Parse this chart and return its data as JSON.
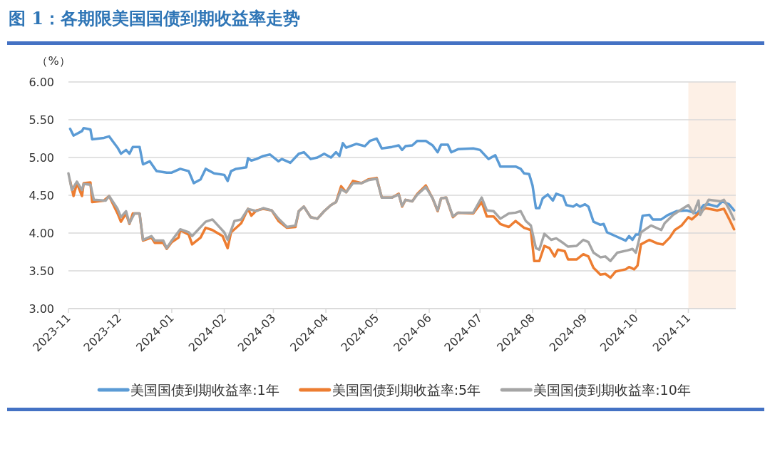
{
  "chart_data": {
    "type": "line",
    "title": "图 1：各期限美国国债到期收益率走势",
    "ylabel": "（%）",
    "xlim": [
      "2023-11-01",
      "2024-11-29"
    ],
    "xticks": [
      "2023-11",
      "2023-12",
      "2024-01",
      "2024-02",
      "2024-03",
      "2024-04",
      "2024-05",
      "2024-06",
      "2024-07",
      "2024-08",
      "2024-09",
      "2024-10",
      "2024-11"
    ],
    "ylim": [
      3,
      6
    ],
    "yticks": [
      {
        "value": 3,
        "label": "3.00"
      },
      {
        "value": 3.5,
        "label": "3.50"
      },
      {
        "value": 4,
        "label": "4.00"
      },
      {
        "value": 4.5,
        "label": "4.50"
      },
      {
        "value": 5,
        "label": "5.00"
      },
      {
        "value": 5.5,
        "label": "5.50"
      },
      {
        "value": 6,
        "label": "6.00"
      }
    ],
    "grid": "y",
    "legend": "bottom",
    "bands": [
      {
        "axis": "x",
        "from": "2024-11-01",
        "to": "2024-11-29",
        "color": "#fdf0e6"
      }
    ],
    "series": [
      {
        "name": "美国国债到期收益率:1年",
        "color": "#5b9bd5",
        "x": [
          "2023-11-02",
          "2023-11-04",
          "2023-11-09",
          "2023-11-10",
          "2023-11-14",
          "2023-11-15",
          "2023-11-22",
          "2023-11-25",
          "2023-11-27",
          "2023-11-30",
          "2023-12-02",
          "2023-12-05",
          "2023-12-07",
          "2023-12-09",
          "2023-12-13",
          "2023-12-15",
          "2023-12-19",
          "2023-12-23",
          "2023-12-29",
          "2024-01-01",
          "2024-01-06",
          "2024-01-11",
          "2024-01-14",
          "2024-01-18",
          "2024-01-21",
          "2024-01-26",
          "2024-02-01",
          "2024-02-03",
          "2024-02-05",
          "2024-02-08",
          "2024-02-14",
          "2024-02-15",
          "2024-02-17",
          "2024-02-20",
          "2024-02-24",
          "2024-02-28",
          "2024-03-04",
          "2024-03-06",
          "2024-03-11",
          "2024-03-16",
          "2024-03-19",
          "2024-03-23",
          "2024-03-27",
          "2024-03-31",
          "2024-04-04",
          "2024-04-07",
          "2024-04-09",
          "2024-04-11",
          "2024-04-13",
          "2024-04-19",
          "2024-04-24",
          "2024-04-27",
          "2024-05-01",
          "2024-05-04",
          "2024-05-10",
          "2024-05-14",
          "2024-05-16",
          "2024-05-18",
          "2024-05-22",
          "2024-05-25",
          "2024-05-30",
          "2024-06-03",
          "2024-06-06",
          "2024-06-08",
          "2024-06-12",
          "2024-06-14",
          "2024-06-18",
          "2024-06-27",
          "2024-07-01",
          "2024-07-06",
          "2024-07-10",
          "2024-07-13",
          "2024-07-19",
          "2024-07-22",
          "2024-07-25",
          "2024-07-27",
          "2024-07-30",
          "2024-08-01",
          "2024-08-03",
          "2024-08-05",
          "2024-08-07",
          "2024-08-10",
          "2024-08-13",
          "2024-08-15",
          "2024-08-19",
          "2024-08-21",
          "2024-08-25",
          "2024-08-27",
          "2024-08-29",
          "2024-09-01",
          "2024-09-03",
          "2024-09-06",
          "2024-09-10",
          "2024-09-12",
          "2024-09-14",
          "2024-09-19",
          "2024-09-25",
          "2024-09-27",
          "2024-09-29",
          "2024-10-01",
          "2024-10-03",
          "2024-10-05",
          "2024-10-09",
          "2024-10-11",
          "2024-10-16",
          "2024-10-20",
          "2024-10-25",
          "2024-10-31",
          "2024-11-06",
          "2024-11-10",
          "2024-11-13",
          "2024-11-18",
          "2024-11-21",
          "2024-11-25",
          "2024-11-28"
        ],
        "values": [
          5.38,
          5.29,
          5.35,
          5.39,
          5.37,
          5.24,
          5.26,
          5.28,
          5.22,
          5.13,
          5.05,
          5.1,
          5.05,
          5.14,
          5.14,
          4.91,
          4.95,
          4.82,
          4.8,
          4.8,
          4.85,
          4.82,
          4.66,
          4.71,
          4.85,
          4.79,
          4.77,
          4.69,
          4.82,
          4.85,
          4.87,
          4.99,
          4.96,
          4.98,
          5.02,
          5.04,
          4.95,
          4.98,
          4.93,
          5.05,
          5.07,
          4.98,
          5.0,
          5.05,
          5.0,
          5.07,
          5.02,
          5.19,
          5.13,
          5.18,
          5.15,
          5.22,
          5.25,
          5.12,
          5.14,
          5.16,
          5.1,
          5.15,
          5.16,
          5.22,
          5.22,
          5.16,
          5.07,
          5.17,
          5.17,
          5.07,
          5.11,
          5.12,
          5.1,
          4.98,
          5.03,
          4.88,
          4.88,
          4.88,
          4.85,
          4.79,
          4.78,
          4.63,
          4.33,
          4.33,
          4.46,
          4.51,
          4.43,
          4.52,
          4.49,
          4.37,
          4.35,
          4.38,
          4.35,
          4.38,
          4.35,
          4.15,
          4.11,
          4.12,
          4.01,
          3.96,
          3.9,
          3.96,
          3.91,
          3.98,
          3.98,
          4.23,
          4.24,
          4.18,
          4.18,
          4.24,
          4.29,
          4.3,
          4.26,
          4.37,
          4.38,
          4.35,
          4.42,
          4.38,
          4.3
        ]
      },
      {
        "name": "美国国债到期收益率:5年",
        "color": "#ed7d31",
        "x": [
          "2023-11-02",
          "2023-11-04",
          "2023-11-06",
          "2023-11-09",
          "2023-11-10",
          "2023-11-14",
          "2023-11-15",
          "2023-11-22",
          "2023-11-25",
          "2023-11-30",
          "2023-12-02",
          "2023-12-05",
          "2023-12-07",
          "2023-12-09",
          "2023-12-13",
          "2023-12-15",
          "2023-12-20",
          "2023-12-22",
          "2023-12-27",
          "2023-12-29",
          "2024-01-01",
          "2024-01-05",
          "2024-01-06",
          "2024-01-11",
          "2024-01-13",
          "2024-01-18",
          "2024-01-21",
          "2024-01-25",
          "2024-01-31",
          "2024-02-03",
          "2024-02-05",
          "2024-02-07",
          "2024-02-11",
          "2024-02-15",
          "2024-02-17",
          "2024-02-20",
          "2024-02-24",
          "2024-02-29",
          "2024-03-04",
          "2024-03-09",
          "2024-03-14",
          "2024-03-16",
          "2024-03-19",
          "2024-03-23",
          "2024-03-27",
          "2024-03-31",
          "2024-04-04",
          "2024-04-07",
          "2024-04-10",
          "2024-04-13",
          "2024-04-17",
          "2024-04-22",
          "2024-04-26",
          "2024-05-01",
          "2024-05-04",
          "2024-05-10",
          "2024-05-14",
          "2024-05-16",
          "2024-05-18",
          "2024-05-22",
          "2024-05-25",
          "2024-05-30",
          "2024-06-03",
          "2024-06-06",
          "2024-06-08",
          "2024-06-11",
          "2024-06-15",
          "2024-06-18",
          "2024-06-27",
          "2024-07-02",
          "2024-07-05",
          "2024-07-09",
          "2024-07-13",
          "2024-07-18",
          "2024-07-22",
          "2024-07-27",
          "2024-07-31",
          "2024-08-02",
          "2024-08-05",
          "2024-08-08",
          "2024-08-11",
          "2024-08-14",
          "2024-08-16",
          "2024-08-20",
          "2024-08-22",
          "2024-08-27",
          "2024-08-31",
          "2024-09-03",
          "2024-09-06",
          "2024-09-10",
          "2024-09-13",
          "2024-09-16",
          "2024-09-19",
          "2024-09-25",
          "2024-09-27",
          "2024-09-30",
          "2024-10-02",
          "2024-10-04",
          "2024-10-09",
          "2024-10-14",
          "2024-10-17",
          "2024-10-21",
          "2024-10-24",
          "2024-10-28",
          "2024-11-01",
          "2024-11-03",
          "2024-11-07",
          "2024-11-11",
          "2024-11-18",
          "2024-11-22",
          "2024-11-25",
          "2024-11-28"
        ],
        "values": [
          4.69,
          4.49,
          4.66,
          4.49,
          4.66,
          4.67,
          4.41,
          4.43,
          4.49,
          4.26,
          4.15,
          4.26,
          4.12,
          4.26,
          4.26,
          3.9,
          3.94,
          3.87,
          3.87,
          3.79,
          3.88,
          3.94,
          4.04,
          3.98,
          3.85,
          3.94,
          4.07,
          4.04,
          3.96,
          3.8,
          4.01,
          4.05,
          4.13,
          4.32,
          4.23,
          4.3,
          4.32,
          4.3,
          4.16,
          4.07,
          4.08,
          4.29,
          4.35,
          4.21,
          4.19,
          4.29,
          4.37,
          4.41,
          4.62,
          4.54,
          4.69,
          4.66,
          4.71,
          4.73,
          4.47,
          4.47,
          4.52,
          4.35,
          4.44,
          4.42,
          4.52,
          4.63,
          4.46,
          4.29,
          4.46,
          4.47,
          4.21,
          4.27,
          4.26,
          4.41,
          4.22,
          4.22,
          4.12,
          4.08,
          4.16,
          4.07,
          4.04,
          3.63,
          3.63,
          3.83,
          3.8,
          3.69,
          3.78,
          3.76,
          3.65,
          3.65,
          3.72,
          3.69,
          3.54,
          3.45,
          3.46,
          3.41,
          3.49,
          3.52,
          3.55,
          3.52,
          3.57,
          3.85,
          3.91,
          3.86,
          3.85,
          3.94,
          4.04,
          4.1,
          4.21,
          4.18,
          4.26,
          4.33,
          4.3,
          4.32,
          4.19,
          4.05
        ]
      },
      {
        "name": "美国国债到期收益率:10年",
        "color": "#a5a5a5",
        "x": [
          "2023-11-01",
          "2023-11-03",
          "2023-11-06",
          "2023-11-09",
          "2023-11-10",
          "2023-11-14",
          "2023-11-16",
          "2023-11-23",
          "2023-11-25",
          "2023-11-30",
          "2023-12-02",
          "2023-12-05",
          "2023-12-07",
          "2023-12-10",
          "2023-12-13",
          "2023-12-15",
          "2023-12-20",
          "2023-12-22",
          "2023-12-27",
          "2023-12-29",
          "2024-01-01",
          "2024-01-06",
          "2024-01-11",
          "2024-01-13",
          "2024-01-21",
          "2024-01-25",
          "2024-02-01",
          "2024-02-03",
          "2024-02-07",
          "2024-02-11",
          "2024-02-15",
          "2024-02-20",
          "2024-02-24",
          "2024-02-29",
          "2024-03-04",
          "2024-03-09",
          "2024-03-14",
          "2024-03-16",
          "2024-03-19",
          "2024-03-23",
          "2024-03-27",
          "2024-03-31",
          "2024-04-04",
          "2024-04-07",
          "2024-04-10",
          "2024-04-13",
          "2024-04-17",
          "2024-04-22",
          "2024-04-26",
          "2024-05-01",
          "2024-05-04",
          "2024-05-10",
          "2024-05-14",
          "2024-05-16",
          "2024-05-18",
          "2024-05-22",
          "2024-05-25",
          "2024-05-30",
          "2024-06-03",
          "2024-06-06",
          "2024-06-08",
          "2024-06-11",
          "2024-06-15",
          "2024-06-18",
          "2024-06-27",
          "2024-07-02",
          "2024-07-05",
          "2024-07-09",
          "2024-07-13",
          "2024-07-18",
          "2024-07-22",
          "2024-07-25",
          "2024-07-28",
          "2024-07-31",
          "2024-08-03",
          "2024-08-05",
          "2024-08-08",
          "2024-08-12",
          "2024-08-15",
          "2024-08-19",
          "2024-08-22",
          "2024-08-27",
          "2024-08-31",
          "2024-09-03",
          "2024-09-06",
          "2024-09-10",
          "2024-09-13",
          "2024-09-16",
          "2024-09-20",
          "2024-09-26",
          "2024-09-29",
          "2024-10-01",
          "2024-10-04",
          "2024-10-10",
          "2024-10-16",
          "2024-10-18",
          "2024-10-23",
          "2024-10-27",
          "2024-11-01",
          "2024-11-04",
          "2024-11-07",
          "2024-11-08",
          "2024-11-13",
          "2024-11-20",
          "2024-11-22",
          "2024-11-25",
          "2024-11-28"
        ],
        "values": [
          4.79,
          4.57,
          4.68,
          4.57,
          4.65,
          4.64,
          4.44,
          4.43,
          4.49,
          4.32,
          4.21,
          4.29,
          4.13,
          4.26,
          4.26,
          3.91,
          3.96,
          3.9,
          3.9,
          3.8,
          3.9,
          4.05,
          4.01,
          3.96,
          4.15,
          4.18,
          4.01,
          3.91,
          4.16,
          4.18,
          4.32,
          4.29,
          4.33,
          4.3,
          4.19,
          4.08,
          4.1,
          4.29,
          4.35,
          4.21,
          4.19,
          4.29,
          4.37,
          4.41,
          4.58,
          4.54,
          4.66,
          4.66,
          4.7,
          4.72,
          4.47,
          4.47,
          4.51,
          4.36,
          4.44,
          4.42,
          4.51,
          4.61,
          4.46,
          4.3,
          4.46,
          4.47,
          4.22,
          4.27,
          4.27,
          4.47,
          4.3,
          4.29,
          4.19,
          4.26,
          4.27,
          4.29,
          4.16,
          4.1,
          3.8,
          3.78,
          3.99,
          3.91,
          3.93,
          3.87,
          3.82,
          3.83,
          3.91,
          3.88,
          3.74,
          3.68,
          3.69,
          3.63,
          3.74,
          3.77,
          3.79,
          3.74,
          4.01,
          4.1,
          4.04,
          4.13,
          4.24,
          4.3,
          4.37,
          4.26,
          4.43,
          4.24,
          4.44,
          4.42,
          4.44,
          4.32,
          4.18
        ]
      }
    ]
  }
}
